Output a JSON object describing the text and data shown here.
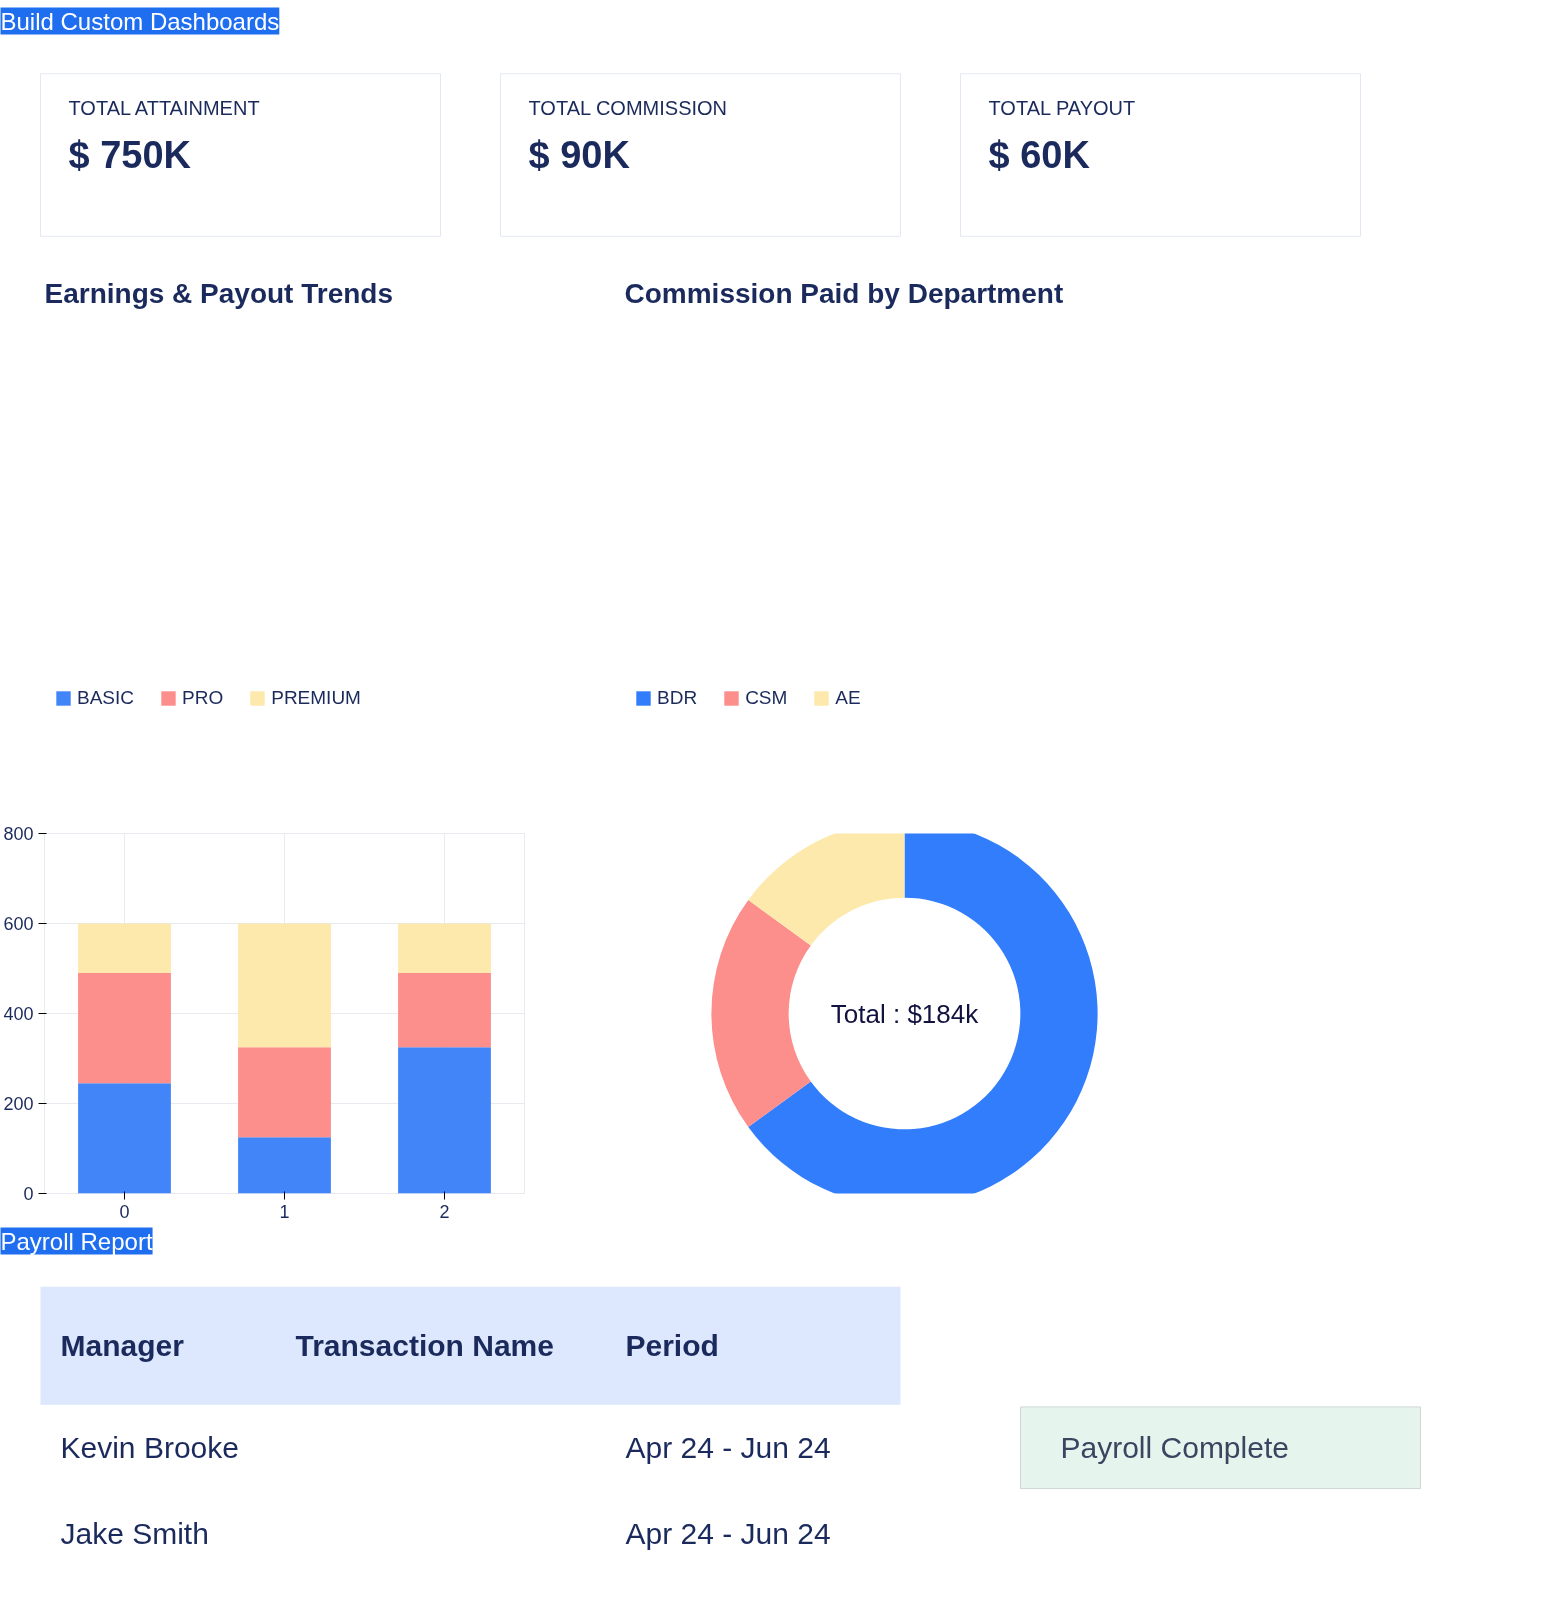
{
  "chart_data": [
    {
      "type": "other",
      "title": "Build Custom Dashboards",
      "annotations": [
        "TOTAL ATTAINMENT",
        "$ 750K",
        "TOTAL COMMISSION",
        "$ 90K",
        "TOTAL PAYOUT",
        "$ 60K"
      ]
    },
    {
      "type": "bar",
      "title": "Earnings & Payout Trends",
      "categories": [
        "0",
        "1",
        "2"
      ],
      "stacked": true,
      "series": [
        {
          "name": "BASIC",
          "color": "#4285f9",
          "values": [
            245,
            125,
            325
          ]
        },
        {
          "name": "PRO",
          "color": "#fc8e8b",
          "values": [
            245,
            200,
            165
          ]
        },
        {
          "name": "PREMIUM",
          "color": "#fce9ab",
          "values": [
            110,
            275,
            110
          ]
        }
      ],
      "ylim": [
        0,
        800
      ],
      "yticks": [
        0,
        200,
        400,
        600,
        800
      ],
      "grid": true,
      "legend": "top left"
    },
    {
      "type": "donut",
      "title": "Commission Paid by Department",
      "categories": [
        "BDR",
        "CSM",
        "AE"
      ],
      "values": [
        65,
        20,
        15
      ],
      "colors": [
        "#327dfb",
        "#fc8e8b",
        "#fce9ab"
      ],
      "annotations": [
        "Total : $184k"
      ],
      "legend": "top left"
    },
    {
      "type": "other",
      "title": "Payroll Report",
      "annotations": [
        "Manager",
        "Transaction Name",
        "Period",
        "Kevin Brooke",
        null,
        "Apr 24 - Jun 24",
        "Jake Smith",
        null,
        "Apr 24 - Jun 24",
        "Payroll Complete"
      ]
    }
  ]
}
